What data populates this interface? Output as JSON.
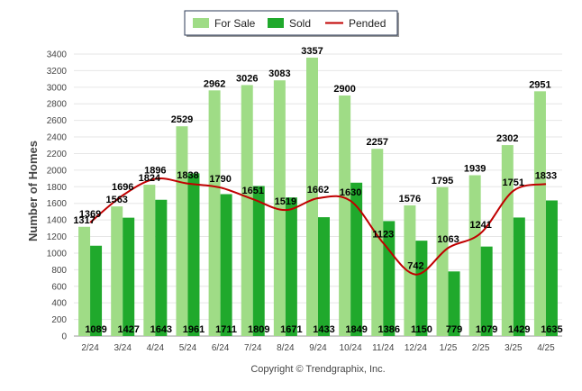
{
  "chart_data": {
    "type": "bar",
    "ylabel": "Number of Homes",
    "ylim": [
      0,
      3400
    ],
    "yticks": [
      0,
      200,
      400,
      600,
      800,
      1000,
      1200,
      1400,
      1600,
      1800,
      2000,
      2200,
      2400,
      2600,
      2800,
      3000,
      3200,
      3400
    ],
    "categories": [
      "2/24",
      "3/24",
      "4/24",
      "5/24",
      "6/24",
      "7/24",
      "8/24",
      "9/24",
      "10/24",
      "11/24",
      "12/24",
      "1/25",
      "2/25",
      "3/25",
      "4/25"
    ],
    "series": [
      {
        "name": "For Sale",
        "kind": "bar",
        "color": "#9fdc86",
        "values": [
          1317,
          1563,
          1824,
          2529,
          2962,
          3026,
          3083,
          3357,
          2900,
          2257,
          1576,
          1795,
          1939,
          2302,
          2951
        ]
      },
      {
        "name": "Sold",
        "kind": "bar",
        "color": "#20a92c",
        "values": [
          1089,
          1427,
          1643,
          1961,
          1711,
          1809,
          1671,
          1433,
          1849,
          1386,
          1150,
          779,
          1079,
          1429,
          1635
        ]
      },
      {
        "name": "Pended",
        "kind": "line",
        "color": "#c00000",
        "values": [
          1369,
          1696,
          1896,
          1838,
          1790,
          1651,
          1519,
          1662,
          1630,
          1123,
          742,
          1063,
          1241,
          1751,
          1833
        ]
      }
    ],
    "legend_position": "top-center",
    "grid": true,
    "credit": "Copyright © Trendgraphix, Inc."
  }
}
